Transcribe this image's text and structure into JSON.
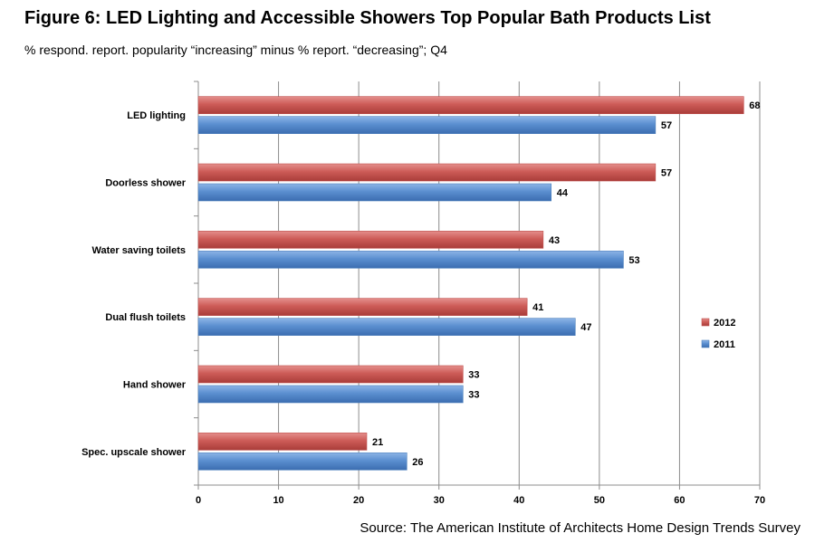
{
  "title": "Figure 6: LED Lighting and Accessible Showers Top Popular Bath Products List",
  "subtitle": "% respond. report. popularity “increasing” minus % report. “decreasing”; Q4",
  "source": "Source: The American Institute of Architects Home Design Trends Survey",
  "colors": {
    "2012": "#c0504d",
    "2011": "#4f81bd"
  },
  "chart_data": {
    "type": "bar",
    "orientation": "horizontal",
    "categories": [
      "LED lighting",
      "Doorless shower",
      "Water saving toilets",
      "Dual flush toilets",
      "Hand shower",
      "Spec. upscale shower"
    ],
    "series": [
      {
        "name": "2012",
        "values": [
          68,
          57,
          43,
          41,
          33,
          21
        ]
      },
      {
        "name": "2011",
        "values": [
          57,
          44,
          53,
          47,
          33,
          26
        ]
      }
    ],
    "xlim": [
      0,
      70
    ],
    "ticks": [
      0,
      10,
      20,
      30,
      40,
      50,
      60,
      70
    ],
    "grid": true,
    "legend_position": "right",
    "data_labels": true
  }
}
